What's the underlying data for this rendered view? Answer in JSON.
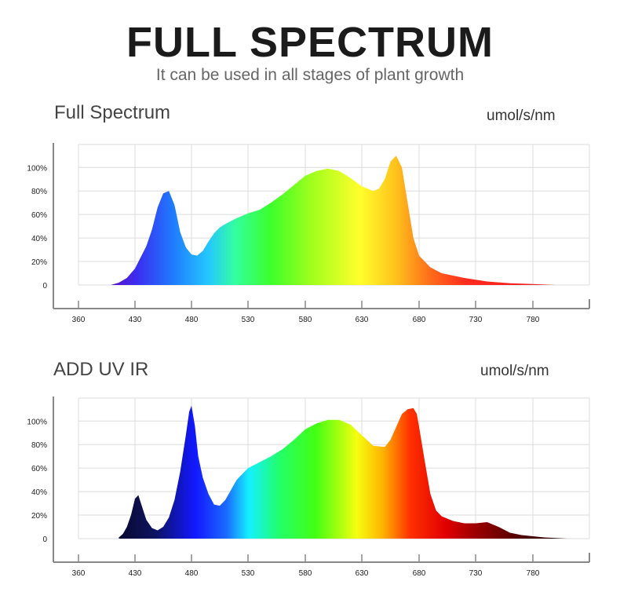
{
  "header": {
    "title": "FULL SPECTRUM",
    "subtitle": "It can be used in all stages of plant growth"
  },
  "chart_data": [
    {
      "type": "area",
      "title": "Full Spectrum",
      "unit_label": "umol/s/nm",
      "xlabel": "",
      "ylabel": "",
      "x_ticks": [
        "360",
        "430",
        "480",
        "530",
        "580",
        "630",
        "680",
        "730",
        "780"
      ],
      "y_ticks": [
        "0",
        "20%",
        "40%",
        "60%",
        "80%",
        "100%"
      ],
      "xlim": [
        360,
        810
      ],
      "ylim": [
        0,
        120
      ],
      "grid": true,
      "fill": "visible-spectrum-gradient",
      "series": [
        {
          "x": [
            400,
            410,
            420,
            430,
            440,
            445,
            450,
            455,
            460,
            465,
            470,
            475,
            480,
            485,
            490,
            495,
            500,
            505,
            510,
            520,
            530,
            540,
            550,
            560,
            570,
            580,
            590,
            600,
            610,
            620,
            630,
            640,
            645,
            650,
            655,
            660,
            665,
            670,
            675,
            680,
            690,
            700,
            720,
            740,
            760,
            780,
            800
          ],
          "y": [
            0,
            2,
            6,
            14,
            33,
            47,
            66,
            78,
            80,
            68,
            45,
            32,
            26,
            25,
            29,
            37,
            44,
            49,
            52,
            57,
            61,
            64,
            70,
            77,
            85,
            93,
            97,
            99,
            97,
            91,
            84,
            80,
            82,
            90,
            105,
            110,
            100,
            70,
            40,
            25,
            15,
            10,
            6,
            3,
            1.5,
            0.8,
            0
          ]
        }
      ]
    },
    {
      "type": "area",
      "title": "ADD UV IR",
      "unit_label": "umol/s/nm",
      "xlabel": "",
      "ylabel": "",
      "x_ticks": [
        "360",
        "430",
        "480",
        "530",
        "580",
        "630",
        "680",
        "730",
        "780"
      ],
      "y_ticks": [
        "0",
        "20%",
        "40%",
        "60%",
        "80%",
        "100%"
      ],
      "xlim": [
        360,
        810
      ],
      "ylim": [
        0,
        120
      ],
      "grid": true,
      "fill": "uv-to-ir-spectrum-gradient",
      "series": [
        {
          "x": [
            410,
            415,
            420,
            425,
            430,
            433,
            436,
            440,
            445,
            450,
            455,
            460,
            465,
            470,
            475,
            478,
            480,
            483,
            486,
            490,
            495,
            500,
            505,
            510,
            520,
            530,
            540,
            550,
            560,
            570,
            580,
            590,
            600,
            610,
            620,
            630,
            640,
            650,
            655,
            660,
            665,
            670,
            675,
            678,
            680,
            685,
            690,
            695,
            700,
            710,
            720,
            730,
            740,
            750,
            760,
            770,
            780,
            790,
            800,
            810
          ],
          "y": [
            1,
            4,
            10,
            20,
            34,
            37,
            28,
            16,
            9,
            7,
            10,
            18,
            33,
            57,
            88,
            108,
            113,
            96,
            70,
            52,
            38,
            29,
            28,
            33,
            50,
            60,
            65,
            70,
            76,
            84,
            93,
            98,
            101,
            101,
            97,
            88,
            79,
            78,
            84,
            95,
            106,
            110,
            111,
            106,
            95,
            66,
            38,
            24,
            19,
            15,
            13,
            13,
            14,
            10,
            5,
            3,
            2,
            1,
            0.5,
            0
          ]
        }
      ]
    }
  ]
}
